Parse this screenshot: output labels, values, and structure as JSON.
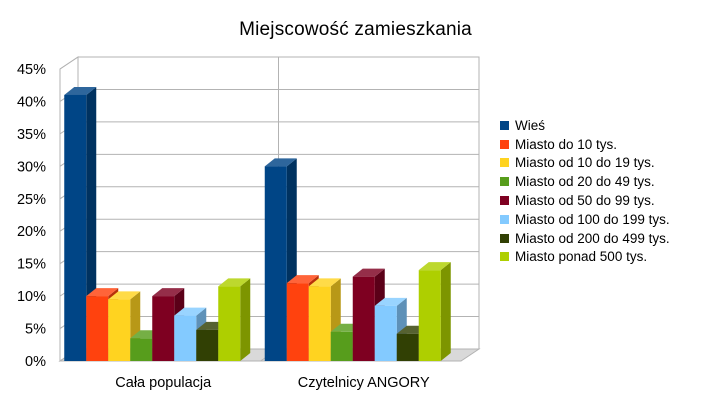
{
  "chart_data": {
    "type": "bar",
    "title": "Miejscowość zamieszkania",
    "xlabel": "",
    "ylabel": "",
    "ylim": [
      0,
      45
    ],
    "yticks": [
      "0%",
      "5%",
      "10%",
      "15%",
      "20%",
      "25%",
      "30%",
      "35%",
      "40%",
      "45%"
    ],
    "grid": true,
    "three_d": true,
    "legend_position": "right",
    "categories": [
      "Cała populacja",
      "Czytelnicy ANGORY"
    ],
    "series": [
      {
        "name": "Wieś",
        "color": "#004586",
        "values": [
          41,
          30
        ]
      },
      {
        "name": "Miasto do 10 tys.",
        "color": "#ff420e",
        "values": [
          10,
          12
        ]
      },
      {
        "name": "Miasto od 10 do 19 tys.",
        "color": "#ffd320",
        "values": [
          9.5,
          11.5
        ]
      },
      {
        "name": "Miasto od 20 do 49 tys.",
        "color": "#579d1c",
        "values": [
          3.5,
          4.5
        ]
      },
      {
        "name": "Miasto od 50 do 99 tys.",
        "color": "#7e0021",
        "values": [
          10,
          13
        ]
      },
      {
        "name": "Miasto od 100 do 199 tys.",
        "color": "#83caff",
        "values": [
          7,
          8.5
        ]
      },
      {
        "name": "Miasto od 200 do 499 tys.",
        "color": "#314004",
        "values": [
          4.8,
          4.2
        ]
      },
      {
        "name": "Miasto ponad 500 tys.",
        "color": "#aecf00",
        "values": [
          11.5,
          14
        ]
      }
    ]
  }
}
